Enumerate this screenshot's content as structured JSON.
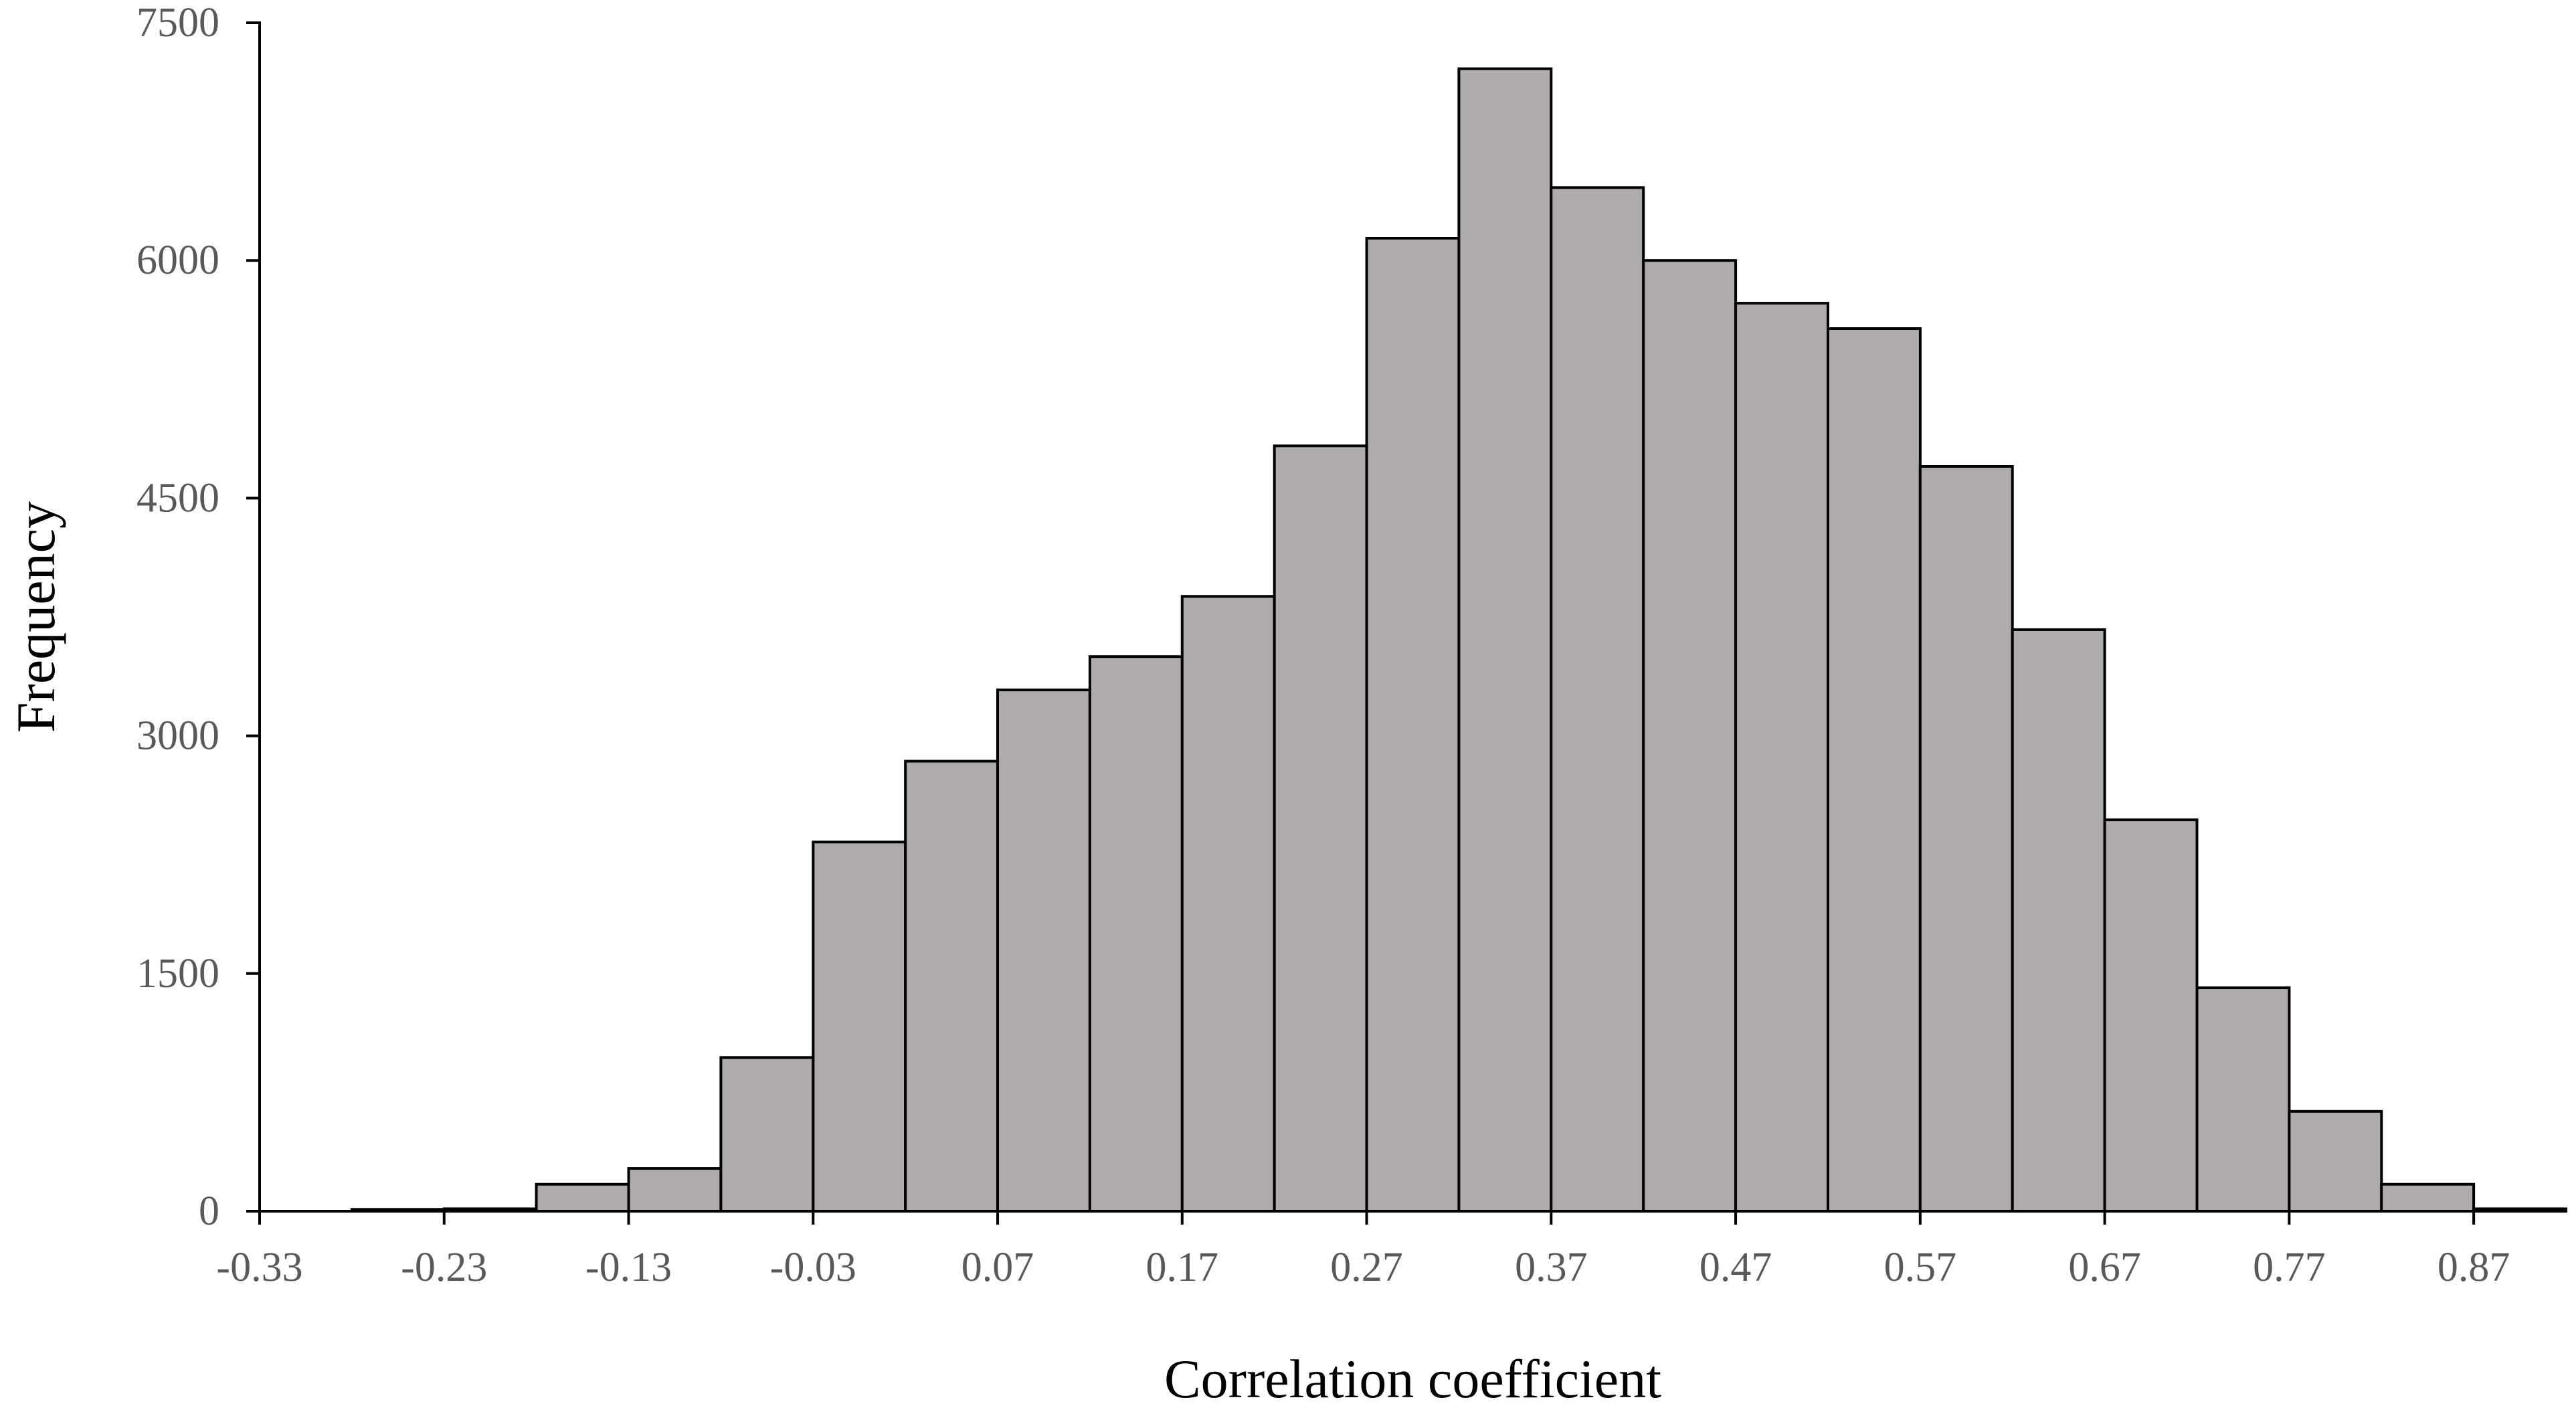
{
  "chart_data": {
    "type": "bar",
    "subtype": "histogram",
    "title": "",
    "xlabel": "Correlation coefficient",
    "ylabel": "Frequency",
    "ylim": [
      0,
      7500
    ],
    "yticks": [
      "0",
      "1500",
      "3000",
      "4500",
      "6000",
      "7500"
    ],
    "xticks": [
      "-0.33",
      "-0.23",
      "-0.13",
      "-0.03",
      "0.07",
      "0.17",
      "0.27",
      "0.37",
      "0.47",
      "0.57",
      "0.67",
      "0.77",
      "0.87"
    ],
    "bin_width": 0.05,
    "x_range": [
      -0.33,
      0.92
    ],
    "bins": [
      {
        "start": -0.33,
        "end": -0.28,
        "value": 0
      },
      {
        "start": -0.28,
        "end": -0.23,
        "value": 12
      },
      {
        "start": -0.23,
        "end": -0.18,
        "value": 15
      },
      {
        "start": -0.18,
        "end": -0.13,
        "value": 170
      },
      {
        "start": -0.13,
        "end": -0.08,
        "value": 270
      },
      {
        "start": -0.08,
        "end": -0.03,
        "value": 970
      },
      {
        "start": -0.03,
        "end": 0.02,
        "value": 2330
      },
      {
        "start": 0.02,
        "end": 0.07,
        "value": 2840
      },
      {
        "start": 0.07,
        "end": 0.12,
        "value": 3290
      },
      {
        "start": 0.12,
        "end": 0.17,
        "value": 3500
      },
      {
        "start": 0.17,
        "end": 0.22,
        "value": 3880
      },
      {
        "start": 0.22,
        "end": 0.27,
        "value": 4830
      },
      {
        "start": 0.27,
        "end": 0.32,
        "value": 6140
      },
      {
        "start": 0.32,
        "end": 0.37,
        "value": 7210
      },
      {
        "start": 0.37,
        "end": 0.42,
        "value": 6460
      },
      {
        "start": 0.42,
        "end": 0.47,
        "value": 6000
      },
      {
        "start": 0.47,
        "end": 0.52,
        "value": 5730
      },
      {
        "start": 0.52,
        "end": 0.57,
        "value": 5570
      },
      {
        "start": 0.57,
        "end": 0.62,
        "value": 4700
      },
      {
        "start": 0.62,
        "end": 0.67,
        "value": 3670
      },
      {
        "start": 0.67,
        "end": 0.72,
        "value": 2470
      },
      {
        "start": 0.72,
        "end": 0.77,
        "value": 1410
      },
      {
        "start": 0.77,
        "end": 0.82,
        "value": 630
      },
      {
        "start": 0.82,
        "end": 0.87,
        "value": 170
      },
      {
        "start": 0.87,
        "end": 0.92,
        "value": 15
      }
    ],
    "grid": false,
    "legend": "none",
    "colors": {
      "bar_fill": "#afabab",
      "bar_stroke": "#000000",
      "tick_label": "#595959",
      "axis_title": "#000000"
    }
  }
}
